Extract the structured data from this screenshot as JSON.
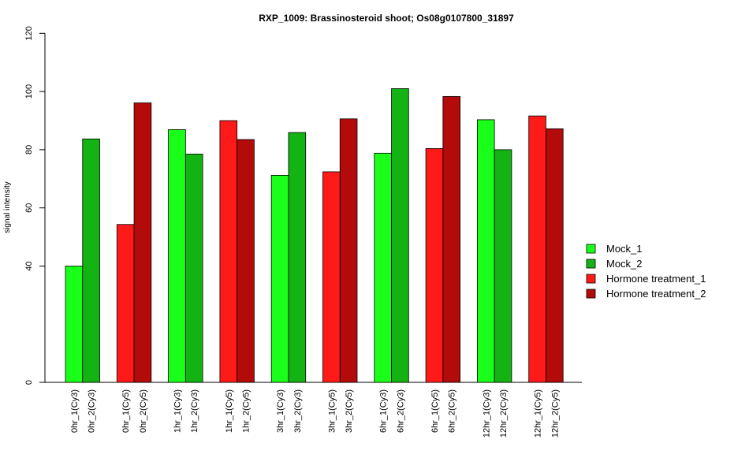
{
  "chart_data": {
    "type": "bar",
    "title": "RXP_1009: Brassinosteroid shoot; Os08g0107800_31897",
    "xlabel": "",
    "ylabel": "signal intensity",
    "yticks": [
      "0",
      "40",
      "60",
      "80",
      "100",
      "120"
    ],
    "grid": false,
    "legend_position": "right",
    "legend": [
      {
        "label": "Mock_1",
        "color": "#1AFF1A"
      },
      {
        "label": "Mock_2",
        "color": "#12B312"
      },
      {
        "label": "Hormone treatment_1",
        "color": "#FF1A1A"
      },
      {
        "label": "Hormone treatment_2",
        "color": "#B30A0A"
      }
    ],
    "bars": [
      {
        "label": "0hr_1(Cy3)",
        "value": 40.0,
        "series": "Mock_1"
      },
      {
        "label": "0hr_2(Cy3)",
        "value": 83.7,
        "series": "Mock_2"
      },
      {
        "label": "0hr_1(Cy5)",
        "value": 54.3,
        "series": "Hormone treatment_1"
      },
      {
        "label": "0hr_2(Cy5)",
        "value": 96.1,
        "series": "Hormone treatment_2"
      },
      {
        "label": "1hr_1(Cy3)",
        "value": 86.9,
        "series": "Mock_1"
      },
      {
        "label": "1hr_2(Cy3)",
        "value": 78.5,
        "series": "Mock_2"
      },
      {
        "label": "1hr_1(Cy5)",
        "value": 90.0,
        "series": "Hormone treatment_1"
      },
      {
        "label": "1hr_2(Cy5)",
        "value": 83.5,
        "series": "Hormone treatment_2"
      },
      {
        "label": "3hr_1(Cy3)",
        "value": 71.2,
        "series": "Mock_1"
      },
      {
        "label": "3hr_2(Cy3)",
        "value": 85.9,
        "series": "Mock_2"
      },
      {
        "label": "3hr_1(Cy5)",
        "value": 72.4,
        "series": "Hormone treatment_1"
      },
      {
        "label": "3hr_2(Cy5)",
        "value": 90.6,
        "series": "Hormone treatment_2"
      },
      {
        "label": "6hr_1(Cy3)",
        "value": 78.8,
        "series": "Mock_1"
      },
      {
        "label": "6hr_2(Cy3)",
        "value": 101.0,
        "series": "Mock_2"
      },
      {
        "label": "6hr_1(Cy5)",
        "value": 80.4,
        "series": "Hormone treatment_1"
      },
      {
        "label": "6hr_2(Cy5)",
        "value": 98.3,
        "series": "Hormone treatment_2"
      },
      {
        "label": "12hr_1(Cy3)",
        "value": 90.3,
        "series": "Mock_1"
      },
      {
        "label": "12hr_2(Cy3)",
        "value": 80.0,
        "series": "Mock_2"
      },
      {
        "label": "12hr_1(Cy5)",
        "value": 91.6,
        "series": "Hormone treatment_1"
      },
      {
        "label": "12hr_2(Cy5)",
        "value": 87.2,
        "series": "Hormone treatment_2"
      }
    ]
  }
}
